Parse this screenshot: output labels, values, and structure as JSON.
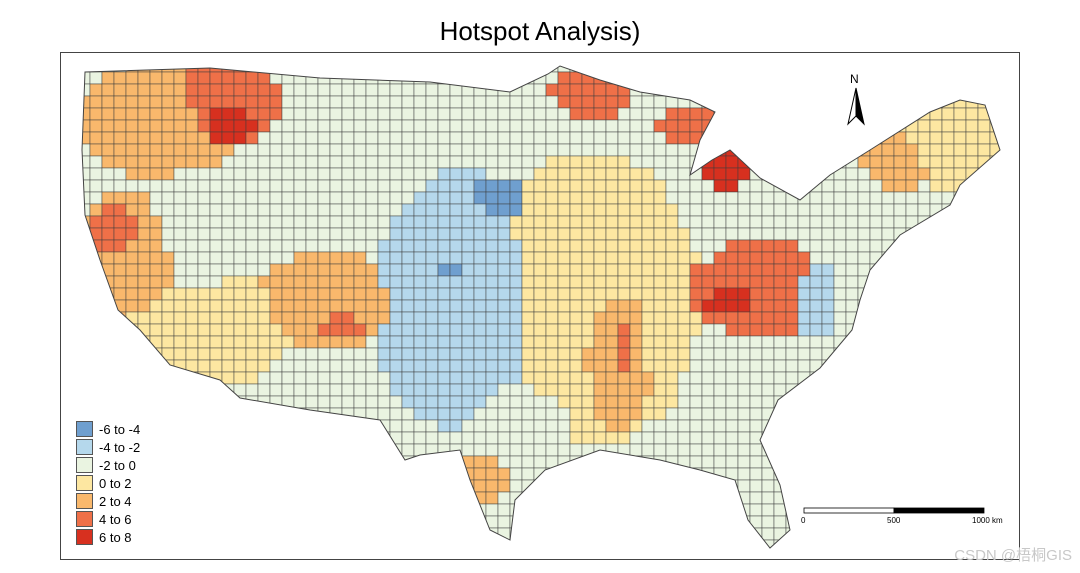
{
  "title": "Hotspot Analysis)",
  "legend": {
    "items": [
      {
        "label": "-6 to -4",
        "color": "#6f9fcf"
      },
      {
        "label": "-4 to -2",
        "color": "#b5d8ec"
      },
      {
        "label": "-2 to 0",
        "color": "#eaf4e1"
      },
      {
        "label": "0 to 2",
        "color": "#fde7a1"
      },
      {
        "label": "2 to 4",
        "color": "#f9b86c"
      },
      {
        "label": "4 to 6",
        "color": "#ef7048"
      },
      {
        "label": "6 to 8",
        "color": "#d7301f"
      }
    ]
  },
  "north_arrow": {
    "label": "N"
  },
  "scale_bar": {
    "ticks": [
      "0",
      "500",
      "1000 km"
    ]
  },
  "watermark": "CSDN @梧桐GIS",
  "colors": {
    "county_border": "#3c3c3c",
    "frame": "#444444",
    "background": "#ffffff"
  }
}
